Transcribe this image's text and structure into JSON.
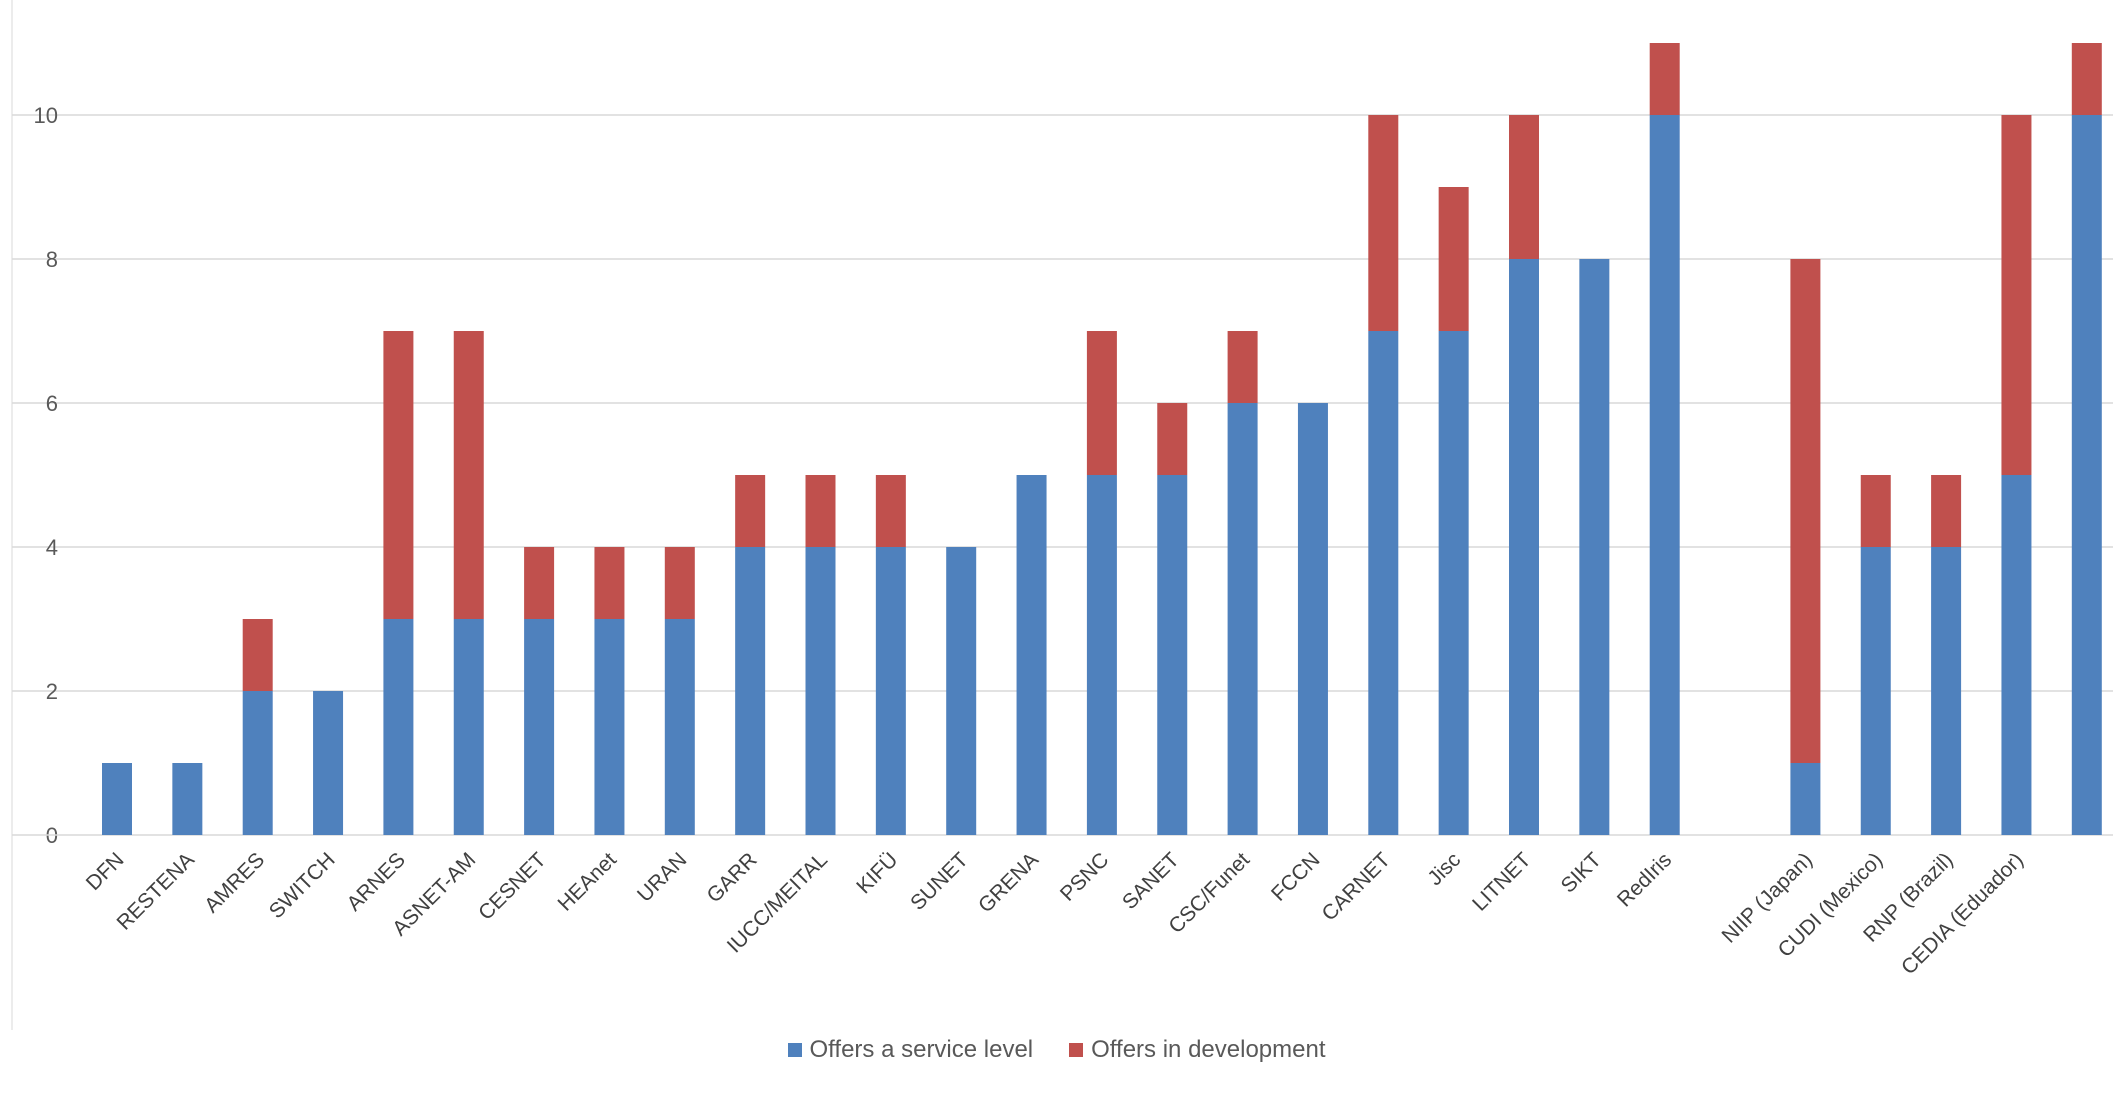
{
  "chart_data": {
    "type": "bar",
    "stacked": true,
    "categories": [
      "DFN",
      "RESTENA",
      "AMRES",
      "SWITCH",
      "ARNES",
      "ASNET-AM",
      "CESNET",
      "HEAnet",
      "URAN",
      "GARR",
      "IUCC/MEITAL",
      "KIFÜ",
      "SUNET",
      "GRENA",
      "PSNC",
      "SANET",
      "CSC/Funet",
      "FCCN",
      "CARNET",
      "Jisc",
      "LITNET",
      "SIKT",
      "RedIris",
      "",
      "NIIP (Japan)",
      "CUDI (Mexico)",
      "RNP (Brazil)",
      "CEDIA (Eduador)",
      ""
    ],
    "series": [
      {
        "name": "Offers a service level",
        "color": "#4f81bd",
        "values": [
          1,
          1,
          2,
          2,
          3,
          3,
          3,
          3,
          3,
          4,
          4,
          4,
          4,
          5,
          5,
          5,
          6,
          6,
          7,
          7,
          8,
          8,
          10,
          0,
          1,
          4,
          4,
          5,
          10
        ]
      },
      {
        "name": "Offers in development",
        "color": "#c0504d",
        "values": [
          0,
          0,
          1,
          0,
          4,
          4,
          1,
          1,
          1,
          1,
          1,
          1,
          0,
          0,
          2,
          1,
          1,
          0,
          3,
          2,
          2,
          0,
          1,
          0,
          7,
          1,
          1,
          5,
          1
        ]
      }
    ],
    "ylim": [
      0,
      11
    ],
    "yticks": [
      "0",
      "2",
      "4",
      "6",
      "8",
      "10"
    ],
    "grid": true,
    "legend_position": "bottom",
    "title": "",
    "xlabel": "",
    "ylabel": ""
  }
}
